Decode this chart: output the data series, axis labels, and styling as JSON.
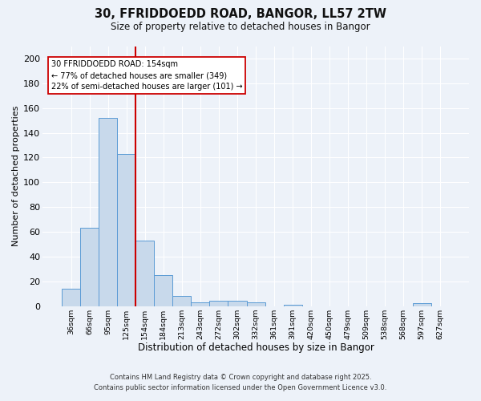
{
  "title1": "30, FFRIDDOEDD ROAD, BANGOR, LL57 2TW",
  "title2": "Size of property relative to detached houses in Bangor",
  "xlabel": "Distribution of detached houses by size in Bangor",
  "ylabel": "Number of detached properties",
  "bar_labels": [
    "36sqm",
    "66sqm",
    "95sqm",
    "125sqm",
    "154sqm",
    "184sqm",
    "213sqm",
    "243sqm",
    "272sqm",
    "302sqm",
    "332sqm",
    "361sqm",
    "391sqm",
    "420sqm",
    "450sqm",
    "479sqm",
    "509sqm",
    "538sqm",
    "568sqm",
    "597sqm",
    "627sqm"
  ],
  "bar_values": [
    14,
    63,
    152,
    123,
    53,
    25,
    8,
    3,
    4,
    4,
    3,
    0,
    1,
    0,
    0,
    0,
    0,
    0,
    0,
    2,
    0
  ],
  "bar_color": "#c8d9eb",
  "bar_edge_color": "#5b9bd5",
  "vline_color": "#cc0000",
  "vline_index": 3.5,
  "annotation_line1": "30 FFRIDDOEDD ROAD: 154sqm",
  "annotation_line2": "← 77% of detached houses are smaller (349)",
  "annotation_line3": "22% of semi-detached houses are larger (101) →",
  "annotation_box_color": "#ffffff",
  "annotation_box_edge": "#cc0000",
  "footer1": "Contains HM Land Registry data © Crown copyright and database right 2025.",
  "footer2": "Contains public sector information licensed under the Open Government Licence v3.0.",
  "bg_color": "#edf2f9",
  "grid_color": "#ffffff",
  "yticks": [
    0,
    20,
    40,
    60,
    80,
    100,
    120,
    140,
    160,
    180,
    200
  ],
  "ylim": [
    0,
    210
  ],
  "title1_fontsize": 10.5,
  "title2_fontsize": 8.5
}
